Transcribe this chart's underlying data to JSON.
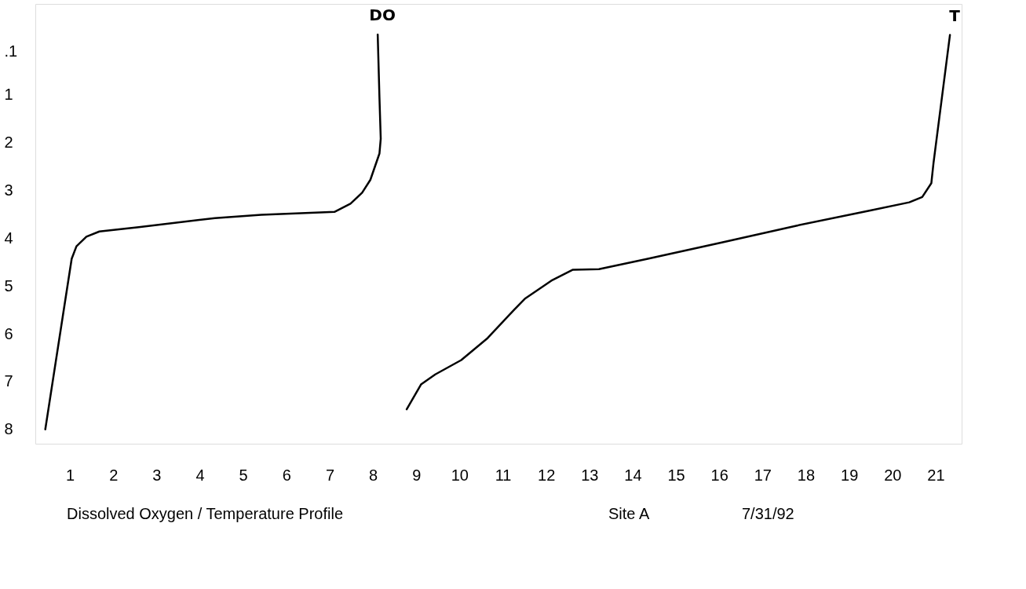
{
  "chart_data": {
    "type": "line",
    "title": "Dissolved Oxygen / Temperature Profile",
    "annotations": [
      "Site A",
      "7/31/92"
    ],
    "xlim": [
      0.2,
      21.6
    ],
    "xticks": [
      1,
      2,
      3,
      4,
      5,
      6,
      7,
      8,
      9,
      10,
      11,
      12,
      13,
      14,
      15,
      16,
      17,
      18,
      19,
      20,
      21
    ],
    "ylim": [
      8.3,
      -0.9
    ],
    "yticks": [
      {
        "value": 0.1,
        "label": ".1"
      },
      1,
      2,
      3,
      4,
      5,
      6,
      7,
      8
    ],
    "grid": false,
    "marker": "none",
    "line_style": "solid",
    "series": [
      {
        "name": "DO",
        "color": "#000000",
        "x": [
          8.11,
          8.15,
          8.18,
          8.15,
          7.94,
          7.75,
          7.48,
          7.11,
          6.78,
          5.42,
          4.35,
          2.59,
          1.68,
          1.38,
          1.15,
          1.04,
          0.83,
          0.43
        ],
        "values": [
          -0.26,
          1.05,
          1.92,
          2.23,
          2.78,
          3.05,
          3.28,
          3.45,
          3.46,
          3.51,
          3.58,
          3.77,
          3.86,
          3.97,
          4.17,
          4.43,
          5.66,
          8.0
        ]
      },
      {
        "name": "T",
        "color": "#000000",
        "x": [
          21.33,
          20.95,
          20.9,
          20.69,
          20.39,
          19.49,
          17.78,
          16.06,
          14.35,
          13.22,
          12.62,
          12.12,
          11.52,
          11.25,
          10.65,
          10.04,
          9.44,
          9.11,
          8.78
        ],
        "values": [
          -0.25,
          2.43,
          2.85,
          3.14,
          3.25,
          3.42,
          3.74,
          4.09,
          4.43,
          4.65,
          4.66,
          4.89,
          5.26,
          5.51,
          6.09,
          6.55,
          6.85,
          7.06,
          7.58
        ]
      }
    ]
  }
}
